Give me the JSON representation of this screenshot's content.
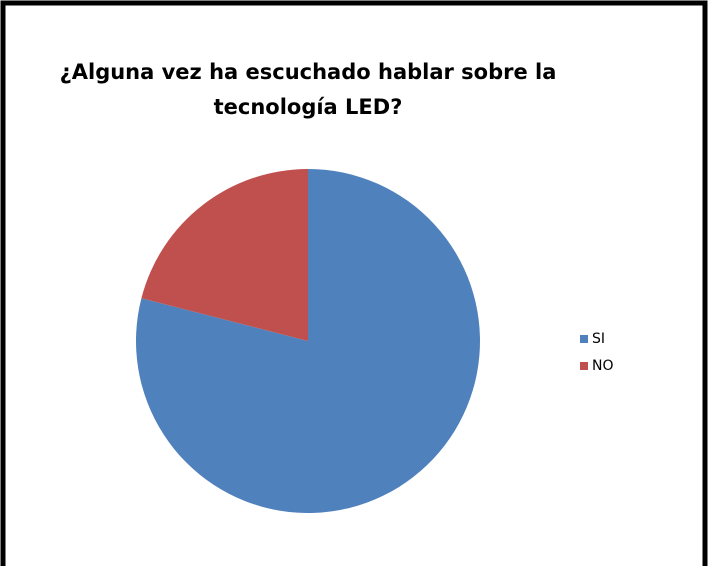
{
  "chart_data": {
    "type": "pie",
    "title": [
      "¿Alguna vez ha escuchado hablar sobre la",
      "tecnología LED?"
    ],
    "categories": [
      "SI",
      "NO"
    ],
    "values": [
      79,
      21
    ],
    "colors": [
      "#4f81bd",
      "#c0504d"
    ],
    "legend": "right"
  }
}
